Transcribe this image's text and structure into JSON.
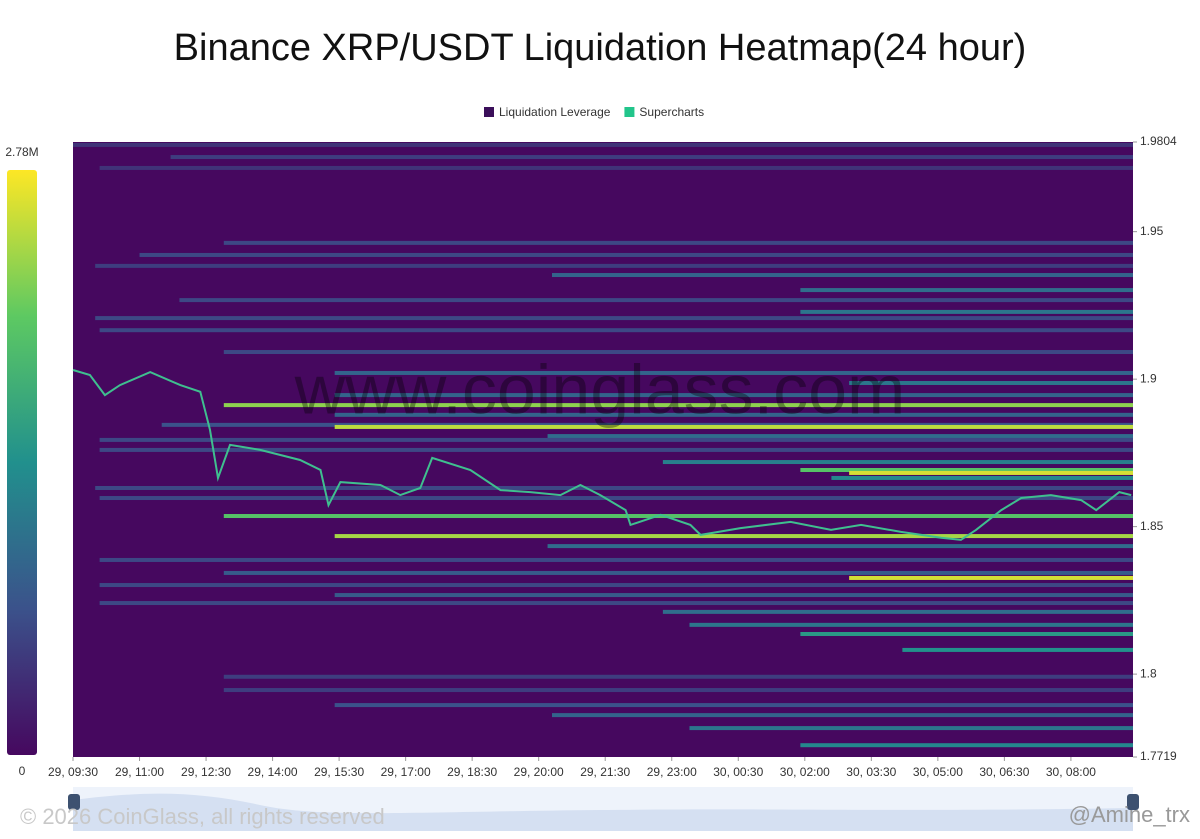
{
  "chart_data": {
    "type": "heatmap",
    "title": "Binance XRP/USDT Liquidation Heatmap(24 hour)",
    "legend": [
      {
        "name": "Liquidation Leverage",
        "color": "#3b0f5a"
      },
      {
        "name": "Supercharts",
        "color": "#22c58b"
      }
    ],
    "background": "#46085f",
    "colorscale": [
      "#46085f",
      "#3b528b",
      "#21908d",
      "#5dc962",
      "#fde725"
    ],
    "colorbar_lim": [
      0,
      2780000
    ],
    "colorbar_ticks": [
      {
        "value": 2780000,
        "label": "2.78M"
      },
      0
    ],
    "xlim": [
      9.5,
      33.4
    ],
    "xticks": [
      {
        "value": 9.5,
        "label": "29, 09:30"
      },
      {
        "value": 11,
        "label": "29, 11:00"
      },
      {
        "value": 12.5,
        "label": "29, 12:30"
      },
      {
        "value": 14,
        "label": "29, 14:00"
      },
      {
        "value": 15.5,
        "label": "29, 15:30"
      },
      {
        "value": 17,
        "label": "29, 17:00"
      },
      {
        "value": 18.5,
        "label": "29, 18:30"
      },
      {
        "value": 20,
        "label": "29, 20:00"
      },
      {
        "value": 21.5,
        "label": "29, 21:30"
      },
      {
        "value": 23,
        "label": "29, 23:00"
      },
      {
        "value": 24.5,
        "label": "30, 00:30"
      },
      {
        "value": 26,
        "label": "30, 02:00"
      },
      {
        "value": 27.5,
        "label": "30, 03:30"
      },
      {
        "value": 29,
        "label": "30, 05:00"
      },
      {
        "value": 30.5,
        "label": "30, 06:30"
      },
      {
        "value": 32,
        "label": "30, 08:00"
      }
    ],
    "ylim": [
      1.7719,
      1.9804
    ],
    "yticks": [
      1.9804,
      1.95,
      1.9,
      1.85,
      1.8,
      1.7719
    ],
    "bands": [
      {
        "price": 1.9794,
        "start": 9.5,
        "value": 400000
      },
      {
        "price": 1.9753,
        "start": 11.7,
        "value": 500000
      },
      {
        "price": 1.9716,
        "start": 10.1,
        "value": 400000
      },
      {
        "price": 1.9462,
        "start": 12.9,
        "value": 600000
      },
      {
        "price": 1.9421,
        "start": 11.0,
        "value": 600000
      },
      {
        "price": 1.9384,
        "start": 10.0,
        "value": 500000
      },
      {
        "price": 1.9353,
        "start": 20.3,
        "value": 900000
      },
      {
        "price": 1.9302,
        "start": 25.9,
        "value": 1000000
      },
      {
        "price": 1.9268,
        "start": 11.9,
        "value": 600000
      },
      {
        "price": 1.9228,
        "start": 25.9,
        "value": 1100000
      },
      {
        "price": 1.9207,
        "start": 10.0,
        "value": 600000
      },
      {
        "price": 1.9166,
        "start": 10.1,
        "value": 600000
      },
      {
        "price": 1.9092,
        "start": 12.9,
        "value": 600000
      },
      {
        "price": 1.9021,
        "start": 15.4,
        "value": 900000
      },
      {
        "price": 1.8987,
        "start": 27.0,
        "value": 1100000
      },
      {
        "price": 1.8946,
        "start": 15.4,
        "value": 900000
      },
      {
        "price": 1.8912,
        "start": 12.9,
        "value": 2300000
      },
      {
        "price": 1.8879,
        "start": 15.4,
        "value": 900000
      },
      {
        "price": 1.8845,
        "start": 11.5,
        "value": 700000
      },
      {
        "price": 1.8838,
        "start": 15.4,
        "value": 2500000
      },
      {
        "price": 1.8807,
        "start": 20.2,
        "value": 1000000
      },
      {
        "price": 1.8794,
        "start": 10.1,
        "value": 600000
      },
      {
        "price": 1.876,
        "start": 10.1,
        "value": 600000
      },
      {
        "price": 1.8719,
        "start": 22.8,
        "value": 1200000
      },
      {
        "price": 1.8692,
        "start": 25.9,
        "value": 2000000
      },
      {
        "price": 1.8682,
        "start": 27.0,
        "value": 2600000
      },
      {
        "price": 1.8665,
        "start": 26.6,
        "value": 1300000
      },
      {
        "price": 1.8631,
        "start": 10.0,
        "value": 600000
      },
      {
        "price": 1.8597,
        "start": 10.1,
        "value": 600000
      },
      {
        "price": 1.8536,
        "start": 12.9,
        "value": 2000000
      },
      {
        "price": 1.8468,
        "start": 15.4,
        "value": 2400000
      },
      {
        "price": 1.8434,
        "start": 20.2,
        "value": 1000000
      },
      {
        "price": 1.8387,
        "start": 10.1,
        "value": 600000
      },
      {
        "price": 1.8343,
        "start": 12.9,
        "value": 800000
      },
      {
        "price": 1.8326,
        "start": 27.0,
        "value": 2600000
      },
      {
        "price": 1.8302,
        "start": 10.1,
        "value": 600000
      },
      {
        "price": 1.8268,
        "start": 15.4,
        "value": 800000
      },
      {
        "price": 1.8241,
        "start": 10.1,
        "value": 600000
      },
      {
        "price": 1.8211,
        "start": 22.8,
        "value": 1000000
      },
      {
        "price": 1.8167,
        "start": 23.4,
        "value": 1100000
      },
      {
        "price": 1.8136,
        "start": 25.9,
        "value": 1500000
      },
      {
        "price": 1.8082,
        "start": 28.2,
        "value": 1400000
      },
      {
        "price": 1.7991,
        "start": 12.9,
        "value": 500000
      },
      {
        "price": 1.7946,
        "start": 12.9,
        "value": 500000
      },
      {
        "price": 1.7895,
        "start": 15.4,
        "value": 700000
      },
      {
        "price": 1.7861,
        "start": 20.3,
        "value": 900000
      },
      {
        "price": 1.7817,
        "start": 23.4,
        "value": 1100000
      },
      {
        "price": 1.7759,
        "start": 25.9,
        "value": 1300000
      }
    ],
    "series": [
      {
        "color": "#3fbf8f",
        "x": [
          9.5,
          9.88,
          10.22,
          10.56,
          11.24,
          11.92,
          12.37,
          12.59,
          12.77,
          13.04,
          13.72,
          14.62,
          15.08,
          15.26,
          15.53,
          16.43,
          16.88,
          17.33,
          17.6,
          18.46,
          19.14,
          19.81,
          20.49,
          20.94,
          21.39,
          21.96,
          22.07,
          22.75,
          23.42,
          23.65,
          24.55,
          25.68,
          26.59,
          27.27,
          28.17,
          29.07,
          29.52,
          29.86,
          30.43,
          30.88,
          31.55,
          32.23,
          32.57,
          33.09,
          33.36
        ],
        "values": [
          1.9031,
          1.9014,
          1.8946,
          1.898,
          1.9024,
          1.898,
          1.8957,
          1.8828,
          1.8665,
          1.8777,
          1.876,
          1.8726,
          1.8692,
          1.8573,
          1.8651,
          1.8641,
          1.8607,
          1.8631,
          1.8733,
          1.8692,
          1.8624,
          1.8617,
          1.8607,
          1.8641,
          1.8607,
          1.8556,
          1.8506,
          1.854,
          1.8506,
          1.8472,
          1.8495,
          1.8516,
          1.8489,
          1.8506,
          1.8482,
          1.8462,
          1.8455,
          1.8489,
          1.8556,
          1.8597,
          1.8607,
          1.859,
          1.8556,
          1.8617,
          1.8607
        ]
      }
    ],
    "watermark": "www.coinglass.com",
    "copyright": "© 2026 CoinGlass, all rights reserved",
    "credit": "@Amine_trx"
  }
}
